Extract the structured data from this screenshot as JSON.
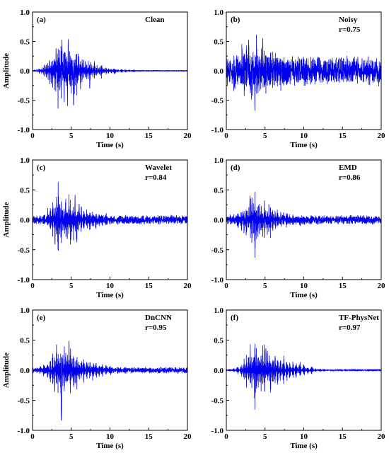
{
  "chart_data": [
    {
      "type": "line",
      "panel_label": "(a)",
      "method": "Clean",
      "r_text": "",
      "xlabel": "Time (s)",
      "ylabel": "Amplitude",
      "xlim": [
        0,
        20
      ],
      "ylim": [
        -1.0,
        1.0
      ],
      "xticks": [
        "0",
        "5",
        "10",
        "15",
        "20"
      ],
      "yticks": [
        "-1.0",
        "-0.5",
        "0.0",
        "0.5",
        "1.0"
      ],
      "series": [
        {
          "color": "#0000ee",
          "noise_floor": 0.0,
          "tail_envelope": 0.015,
          "x": [
            0,
            0.3,
            0.6,
            0.9,
            1.2,
            1.5,
            1.8,
            2.0,
            2.2,
            2.4,
            2.6,
            2.8,
            2.9,
            3.0,
            3.1,
            3.2,
            3.3,
            3.4,
            3.5,
            3.6,
            3.7,
            3.8,
            3.9,
            4.0,
            4.1,
            4.2,
            4.3,
            4.4,
            4.5,
            4.6,
            4.7,
            4.8,
            4.9,
            5.0,
            5.1,
            5.2,
            5.3,
            5.4,
            5.5,
            5.6,
            5.7,
            5.8,
            5.9,
            6.0,
            6.2,
            6.4,
            6.6,
            6.8,
            7.0,
            7.2,
            7.4,
            7.6,
            7.8,
            8.0,
            8.3,
            8.6,
            8.9,
            9.2,
            9.5,
            9.8,
            10.2,
            10.6,
            11.0,
            11.5,
            12.0,
            12.5,
            13.0,
            14.0,
            15.0,
            16.0,
            17.0,
            18.0,
            19.0,
            20.0
          ],
          "y": [
            0.0,
            0.03,
            -0.05,
            0.08,
            -0.1,
            0.15,
            -0.2,
            0.25,
            -0.3,
            0.35,
            -0.35,
            0.45,
            -0.5,
            0.75,
            -0.2,
            0.4,
            -0.95,
            0.55,
            -0.6,
            0.3,
            -0.97,
            0.6,
            -0.3,
            0.45,
            -0.7,
            0.62,
            -0.4,
            0.5,
            -0.8,
            0.6,
            -0.35,
            0.45,
            -0.6,
            0.55,
            -0.5,
            0.35,
            -0.7,
            0.5,
            -0.4,
            0.4,
            -0.6,
            0.35,
            -0.45,
            0.3,
            -0.4,
            0.35,
            -0.3,
            0.3,
            -0.25,
            0.25,
            -0.4,
            0.2,
            -0.2,
            0.25,
            -0.15,
            0.15,
            -0.2,
            0.1,
            -0.1,
            0.08,
            -0.08,
            0.1,
            -0.05,
            0.05,
            -0.04,
            0.03,
            -0.03,
            0.02,
            -0.015,
            0.01,
            -0.01,
            0.008,
            -0.005,
            0.0
          ]
        }
      ]
    },
    {
      "type": "line",
      "panel_label": "(b)",
      "method": "Noisy",
      "r_text": "r=0.75",
      "xlabel": "Time (s)",
      "ylabel": "",
      "xlim": [
        0,
        20
      ],
      "ylim": [
        -1.0,
        1.0
      ],
      "xticks": [
        "0",
        "5",
        "10",
        "15",
        "20"
      ],
      "yticks": [
        "-1.0",
        "-0.5",
        "0.0",
        "0.5",
        "1.0"
      ],
      "series": [
        {
          "color": "#0000ee",
          "noise_floor": 0.17,
          "tail_envelope": 0.15,
          "x": [
            0,
            0.5,
            1.0,
            1.5,
            2.0,
            2.3,
            2.6,
            2.9,
            3.1,
            3.3,
            3.5,
            3.7,
            3.9,
            4.1,
            4.3,
            4.5,
            4.7,
            4.9,
            5.1,
            5.3,
            5.5,
            5.7,
            6.0,
            6.3,
            6.6,
            7.0,
            7.4,
            7.8,
            8.2,
            8.6,
            9.0,
            9.5,
            10.0,
            11.0,
            12.0,
            14.0,
            16.0,
            18.0,
            20.0
          ],
          "y": [
            0.05,
            -0.3,
            0.4,
            -0.35,
            0.5,
            -0.5,
            0.65,
            -0.6,
            0.6,
            -0.96,
            0.7,
            -0.82,
            0.78,
            -0.6,
            0.62,
            -0.5,
            0.6,
            -0.55,
            0.55,
            -0.5,
            0.5,
            -0.45,
            0.45,
            -0.4,
            0.4,
            -0.4,
            0.35,
            -0.35,
            0.3,
            -0.3,
            0.25,
            -0.28,
            0.25,
            -0.22,
            0.2,
            -0.18,
            0.2,
            -0.18,
            0.05
          ]
        }
      ]
    },
    {
      "type": "line",
      "panel_label": "(c)",
      "method": "Wavelet",
      "r_text": "r=0.84",
      "xlabel": "Time (s)",
      "ylabel": "Amplitude",
      "xlim": [
        0,
        20
      ],
      "ylim": [
        -1.0,
        1.0
      ],
      "xticks": [
        "0",
        "5",
        "10",
        "15",
        "20"
      ],
      "yticks": [
        "-1.0",
        "-0.5",
        "0.0",
        "0.5",
        "1.0"
      ],
      "series": [
        {
          "color": "#0000ee",
          "noise_floor": 0.04,
          "tail_envelope": 0.06,
          "x": [
            0,
            0.5,
            1.0,
            1.5,
            2.0,
            2.3,
            2.6,
            2.9,
            3.1,
            3.3,
            3.5,
            3.7,
            3.9,
            4.1,
            4.3,
            4.5,
            4.7,
            4.9,
            5.1,
            5.3,
            5.5,
            5.7,
            6.0,
            6.3,
            6.6,
            7.0,
            7.4,
            7.8,
            8.2,
            8.6,
            9.0,
            9.5,
            10.0,
            11.0,
            12.0,
            14.0,
            16.0,
            18.0,
            20.0
          ],
          "y": [
            0.0,
            -0.08,
            0.1,
            -0.15,
            0.25,
            -0.3,
            0.45,
            -0.5,
            0.6,
            -0.93,
            0.55,
            -0.7,
            0.45,
            -0.45,
            0.6,
            -0.5,
            0.55,
            -0.6,
            0.4,
            -0.45,
            0.45,
            -0.5,
            0.35,
            -0.3,
            0.3,
            -0.25,
            0.25,
            -0.25,
            0.2,
            -0.15,
            0.15,
            -0.15,
            0.1,
            -0.08,
            0.08,
            -0.06,
            0.06,
            -0.05,
            0.0
          ]
        }
      ]
    },
    {
      "type": "line",
      "panel_label": "(d)",
      "method": "EMD",
      "r_text": "r=0.86",
      "xlabel": "Time (s)",
      "ylabel": "",
      "xlim": [
        0,
        20
      ],
      "ylim": [
        -1.0,
        1.0
      ],
      "xticks": [
        "0",
        "5",
        "10",
        "15",
        "20"
      ],
      "yticks": [
        "-1.0",
        "-0.5",
        "0.0",
        "0.5",
        "1.0"
      ],
      "series": [
        {
          "color": "#0000ee",
          "noise_floor": 0.04,
          "tail_envelope": 0.06,
          "x": [
            0,
            0.5,
            1.0,
            1.5,
            2.0,
            2.3,
            2.6,
            2.9,
            3.1,
            3.3,
            3.5,
            3.7,
            3.9,
            4.1,
            4.3,
            4.5,
            4.7,
            4.9,
            5.1,
            5.3,
            5.5,
            5.7,
            6.0,
            6.3,
            6.6,
            7.0,
            7.4,
            7.8,
            8.2,
            8.6,
            9.0,
            9.5,
            10.0,
            11.0,
            12.0,
            14.0,
            16.0,
            18.0,
            20.0
          ],
          "y": [
            0.0,
            -0.08,
            0.1,
            -0.2,
            0.25,
            -0.3,
            0.4,
            -0.35,
            0.65,
            -0.6,
            0.45,
            -0.85,
            0.5,
            -0.55,
            0.45,
            -0.45,
            0.4,
            -0.5,
            0.3,
            -0.35,
            0.35,
            -0.4,
            0.3,
            -0.25,
            0.25,
            -0.2,
            0.2,
            -0.2,
            0.15,
            -0.12,
            0.12,
            -0.12,
            0.1,
            -0.08,
            0.08,
            -0.07,
            0.07,
            -0.06,
            0.0
          ]
        }
      ]
    },
    {
      "type": "line",
      "panel_label": "(e)",
      "method": "DnCNN",
      "r_text": "r=0.95",
      "xlabel": "Time (s)",
      "ylabel": "Amplitude",
      "xlim": [
        0,
        20
      ],
      "ylim": [
        -1.0,
        1.0
      ],
      "xticks": [
        "0",
        "5",
        "10",
        "15",
        "20"
      ],
      "yticks": [
        "-1.0",
        "-0.5",
        "0.0",
        "0.5",
        "1.0"
      ],
      "series": [
        {
          "color": "#0000ee",
          "noise_floor": 0.03,
          "tail_envelope": 0.04,
          "x": [
            0,
            0.5,
            1.0,
            1.5,
            2.0,
            2.3,
            2.6,
            2.9,
            3.1,
            3.3,
            3.5,
            3.7,
            3.9,
            4.1,
            4.3,
            4.5,
            4.7,
            4.9,
            5.1,
            5.3,
            5.5,
            5.7,
            6.0,
            6.3,
            6.6,
            7.0,
            7.4,
            7.8,
            8.2,
            8.6,
            9.0,
            9.5,
            10.0,
            11.0,
            12.0,
            14.0,
            16.0,
            18.0,
            20.0
          ],
          "y": [
            0.0,
            -0.06,
            0.08,
            -0.15,
            0.2,
            -0.3,
            0.45,
            -0.5,
            0.6,
            -0.55,
            0.55,
            -0.95,
            0.5,
            -0.6,
            0.55,
            -0.5,
            0.55,
            -0.55,
            0.45,
            -0.5,
            0.4,
            -0.5,
            0.35,
            -0.3,
            0.3,
            -0.25,
            0.25,
            -0.25,
            0.2,
            -0.15,
            0.15,
            -0.12,
            0.1,
            -0.06,
            0.06,
            -0.04,
            0.04,
            -0.04,
            0.0
          ]
        }
      ]
    },
    {
      "type": "line",
      "panel_label": "(f)",
      "method": "TF-PhysNet",
      "r_text": "r=0.97",
      "xlabel": "Time (s)",
      "ylabel": "",
      "xlim": [
        0,
        20
      ],
      "ylim": [
        -1.0,
        1.0
      ],
      "xticks": [
        "0",
        "5",
        "10",
        "15",
        "20"
      ],
      "yticks": [
        "-1.0",
        "-0.5",
        "0.0",
        "0.5",
        "1.0"
      ],
      "series": [
        {
          "color": "#0000ee",
          "noise_floor": 0.0,
          "tail_envelope": 0.008,
          "x": [
            0,
            0.5,
            1.0,
            1.5,
            2.0,
            2.3,
            2.6,
            2.9,
            3.1,
            3.3,
            3.5,
            3.7,
            3.9,
            4.1,
            4.3,
            4.5,
            4.7,
            4.9,
            5.1,
            5.3,
            5.5,
            5.7,
            6.0,
            6.3,
            6.6,
            7.0,
            7.4,
            7.8,
            8.2,
            8.6,
            9.0,
            9.5,
            10.0,
            10.5,
            11.0,
            11.5,
            12.0,
            13.0,
            14.0,
            16.0,
            18.0,
            20.0
          ],
          "y": [
            0.0,
            -0.03,
            0.05,
            -0.1,
            0.15,
            -0.25,
            0.4,
            -0.45,
            0.6,
            -0.5,
            0.4,
            -0.97,
            0.55,
            -0.6,
            0.5,
            -0.5,
            0.55,
            -0.6,
            0.45,
            -0.5,
            0.45,
            -0.5,
            0.4,
            -0.35,
            0.35,
            -0.3,
            0.35,
            -0.3,
            0.25,
            -0.2,
            0.2,
            -0.2,
            0.15,
            -0.1,
            0.1,
            -0.05,
            0.04,
            -0.02,
            0.01,
            -0.005,
            0.003,
            0.0
          ]
        }
      ]
    }
  ]
}
